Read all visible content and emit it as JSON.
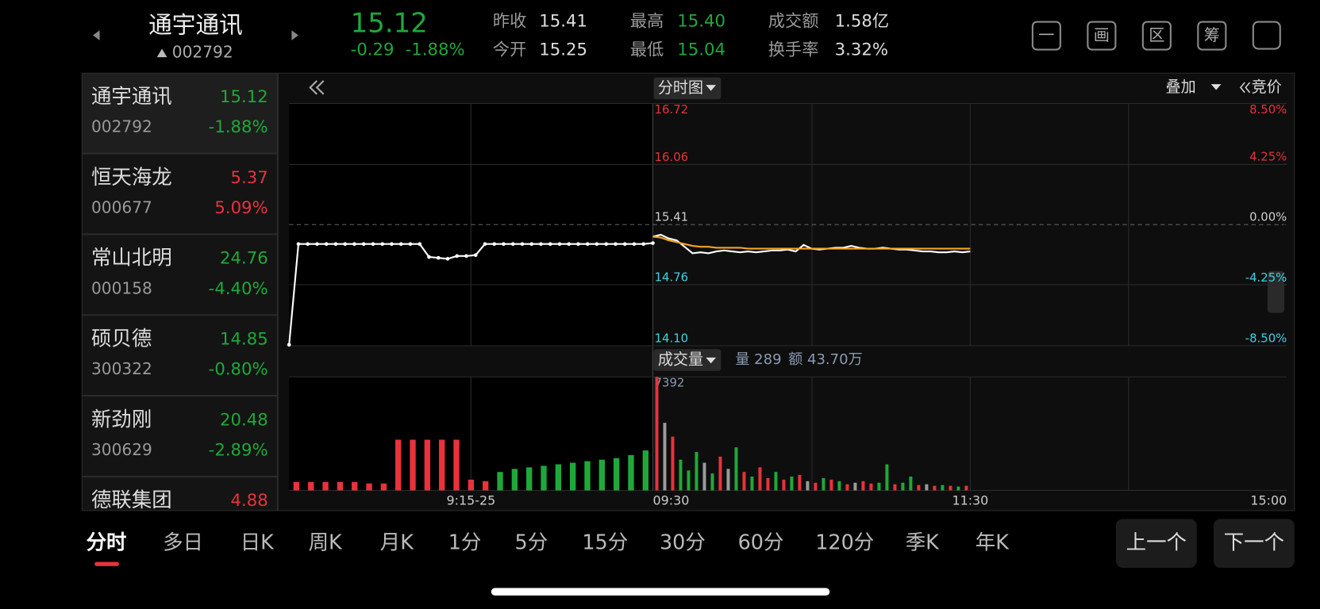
{
  "header": {
    "name": "通宇通讯",
    "code": "002792",
    "price": "15.12",
    "change": "-0.29",
    "change_pct": "-1.88%",
    "stats": [
      {
        "label": "昨收",
        "value": "15.41"
      },
      {
        "label": "今开",
        "value": "15.25"
      },
      {
        "label": "最高",
        "value": "15.40"
      },
      {
        "label": "最低",
        "value": "15.04"
      },
      {
        "label": "成交额",
        "value": "1.58亿"
      },
      {
        "label": "换手率",
        "value": "3.32%"
      }
    ],
    "tools": [
      "一",
      "画",
      "区",
      "筹"
    ]
  },
  "watchlist": [
    {
      "name": "通宇通讯",
      "price": "15.12",
      "code": "002792",
      "pct": "-1.88%"
    },
    {
      "name": "恒天海龙",
      "price": "5.37",
      "code": "000677",
      "pct": "5.09%"
    },
    {
      "name": "常山北明",
      "price": "24.76",
      "code": "000158",
      "pct": "-4.40%"
    },
    {
      "name": "硕贝德",
      "price": "14.85",
      "code": "300322",
      "pct": "-0.80%"
    },
    {
      "name": "新劲刚",
      "price": "20.48",
      "code": "300629",
      "pct": "-2.89%"
    },
    {
      "name": "德联集团",
      "price": "4.88"
    }
  ],
  "chart_data": [
    {
      "type": "line",
      "tab_label": "分时图",
      "overlay_label": "叠加",
      "auction_label": "竞价",
      "ylim": [
        14.1,
        16.72
      ],
      "yticks": [
        16.72,
        16.06,
        15.41,
        14.76,
        {
          "value": 14.1,
          "label": "14.10"
        }
      ],
      "y2lim": [
        -8.5,
        8.5
      ],
      "y2ticks": [
        {
          "value": 8.5,
          "label": "8.50%"
        },
        {
          "value": 4.25,
          "label": "4.25%"
        },
        {
          "value": 0,
          "label": "0.00%"
        },
        {
          "value": -4.25,
          "label": "-4.25%"
        },
        {
          "value": -8.5,
          "label": "-8.50%"
        }
      ],
      "x_labels": [
        "9:15-25",
        "09:30",
        "11:30",
        "15:00"
      ],
      "auction": {
        "color": "#ffffff",
        "values": [
          14.11,
          15.2,
          15.2,
          15.2,
          15.2,
          15.2,
          15.2,
          15.2,
          15.2,
          15.2,
          15.2,
          15.2,
          15.2,
          15.2,
          15.2,
          15.06,
          15.05,
          15.04,
          15.07,
          15.07,
          15.08,
          15.2,
          15.2,
          15.2,
          15.2,
          15.2,
          15.2,
          15.2,
          15.2,
          15.2,
          15.2,
          15.2,
          15.2,
          15.2,
          15.2,
          15.2,
          15.2,
          15.2,
          15.2,
          15.21
        ]
      },
      "series": [
        {
          "color": "#ffffff",
          "values": [
            15.28,
            15.3,
            15.26,
            15.24,
            15.17,
            15.1,
            15.11,
            15.1,
            15.12,
            15.13,
            15.12,
            15.11,
            15.12,
            15.11,
            15.12,
            15.13,
            15.13,
            15.14,
            15.12,
            15.19,
            15.15,
            15.14,
            15.15,
            15.16,
            15.16,
            15.18,
            15.16,
            15.15,
            15.15,
            15.16,
            15.15,
            15.14,
            15.14,
            15.13,
            15.12,
            15.12,
            15.11,
            15.11,
            15.12,
            15.11,
            15.12
          ]
        },
        {
          "color": "#f5a623",
          "values": [
            15.28,
            15.27,
            15.24,
            15.22,
            15.2,
            15.18,
            15.17,
            15.17,
            15.16,
            15.16,
            15.16,
            15.16,
            15.15,
            15.15,
            15.15,
            15.15,
            15.15,
            15.15,
            15.15,
            15.15,
            15.15,
            15.15,
            15.15,
            15.15,
            15.15,
            15.15,
            15.15,
            15.15,
            15.15,
            15.15,
            15.15,
            15.15,
            15.15,
            15.15,
            15.15,
            15.15,
            15.15,
            15.15,
            15.15,
            15.15,
            15.15
          ]
        }
      ]
    },
    {
      "type": "bar",
      "title": "成交量",
      "volume_text": "量 289",
      "amount_text": "额 43.70万",
      "ylim": [
        0,
        7392
      ],
      "yticks": [
        7392
      ],
      "auction": {
        "colors": [
          "#e8323c",
          "#e8323c",
          "#e8323c",
          "#e8323c",
          "#e8323c",
          "#e8323c",
          "#e8323c",
          "#e8323c",
          "#e8323c",
          "#e8323c",
          "#e8323c",
          "#e8323c",
          "#e8323c",
          "#e8323c",
          "#1fa83a",
          "#1fa83a",
          "#1fa83a",
          "#1fa83a",
          "#1fa83a",
          "#1fa83a",
          "#1fa83a",
          "#1fa83a",
          "#1fa83a",
          "#1fa83a",
          "#1fa83a"
        ],
        "values": [
          550,
          550,
          550,
          550,
          550,
          450,
          450,
          3300,
          3300,
          3300,
          3300,
          3300,
          700,
          600,
          1200,
          1400,
          1500,
          1600,
          1700,
          1800,
          1900,
          2000,
          2100,
          2300,
          2600
        ]
      },
      "series": [
        {
          "colors": [
            "#e8323c",
            "#9a9a9a",
            "#e8323c",
            "#1fa83a",
            "#1fa83a",
            "#1fa83a",
            "#9a9a9a",
            "#1fa83a",
            "#e8323c",
            "#9a9a9a",
            "#1fa83a",
            "#e8323c",
            "#1fa83a",
            "#e8323c",
            "#e8323c",
            "#1fa83a",
            "#e8323c",
            "#1fa83a",
            "#e8323c",
            "#9a9a9a",
            "#e8323c",
            "#1fa83a",
            "#e8323c",
            "#1fa83a",
            "#e8323c",
            "#9a9a9a",
            "#e8323c",
            "#e8323c",
            "#1fa83a",
            "#1fa83a",
            "#e8323c",
            "#1fa83a",
            "#1fa83a",
            "#e8323c",
            "#9a9a9a",
            "#e8323c",
            "#1fa83a",
            "#e8323c",
            "#1fa83a",
            "#e8323c"
          ],
          "values": [
            7392,
            4400,
            3500,
            2000,
            1300,
            2500,
            1800,
            1100,
            2200,
            1400,
            2800,
            1200,
            900,
            1500,
            800,
            1200,
            700,
            900,
            1000,
            600,
            500,
            800,
            700,
            600,
            400,
            500,
            600,
            450,
            500,
            1700,
            400,
            500,
            900,
            350,
            400,
            300,
            350,
            300,
            250,
            300
          ]
        }
      ]
    }
  ],
  "tabs": [
    "分时",
    "多日",
    "日K",
    "周K",
    "月K",
    "1分",
    "5分",
    "15分",
    "30分",
    "60分",
    "120分",
    "季K",
    "年K"
  ],
  "buttons": [
    "上一个",
    "下一个"
  ]
}
